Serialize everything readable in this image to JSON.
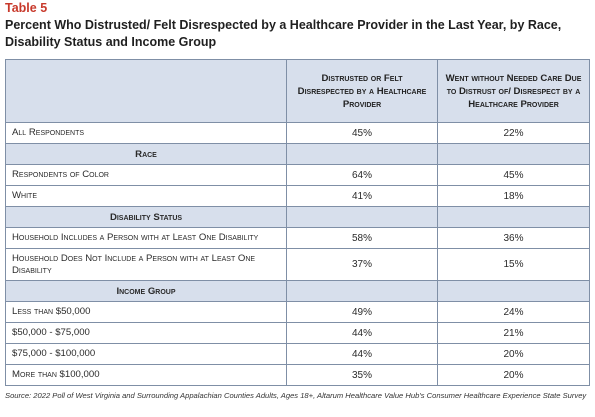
{
  "table_label": "Table 5",
  "title": "Percent Who Distrusted/ Felt Disrespected by a Healthcare Provider in the Last Year, by Race, Disability Status and Income Group",
  "columns": [
    "",
    "Distrusted or Felt Disrespected by a Healthcare Provider",
    "Went without Needed Care Due to Distrust of/ Disrespect by a Healthcare Provider"
  ],
  "rows": {
    "all": {
      "label": "All Respondents",
      "distrusted": "45%",
      "went_without": "22%"
    },
    "race_header": "Race",
    "poc": {
      "label": "Respondents of Color",
      "distrusted": "64%",
      "went_without": "45%"
    },
    "white": {
      "label": "White",
      "distrusted": "41%",
      "went_without": "18%"
    },
    "disability_header": "Disability Status",
    "with_disability": {
      "label": "Household Includes a Person with at Least One Disability",
      "distrusted": "58%",
      "went_without": "36%"
    },
    "without_disability": {
      "label": "Household Does Not Include a Person with at Least One Disability",
      "distrusted": "37%",
      "went_without": "15%"
    },
    "income_header": "Income Group",
    "inc1": {
      "label": "Less than $50,000",
      "distrusted": "49%",
      "went_without": "24%"
    },
    "inc2": {
      "label": "$50,000 - $75,000",
      "distrusted": "44%",
      "went_without": "21%"
    },
    "inc3": {
      "label": "$75,000 - $100,000",
      "distrusted": "44%",
      "went_without": "20%"
    },
    "inc4": {
      "label": "More than $100,000",
      "distrusted": "35%",
      "went_without": "20%"
    }
  },
  "source": "Source: 2022 Poll of West Virginia and Surrounding Appalachian Counties Adults, Ages 18+, Altarum Healthcare Value Hub's Consumer Healthcare Experience State Survey",
  "colors": {
    "accent": "#c8392b",
    "header_fill": "#d7dfec",
    "border": "#7f8fa6"
  }
}
